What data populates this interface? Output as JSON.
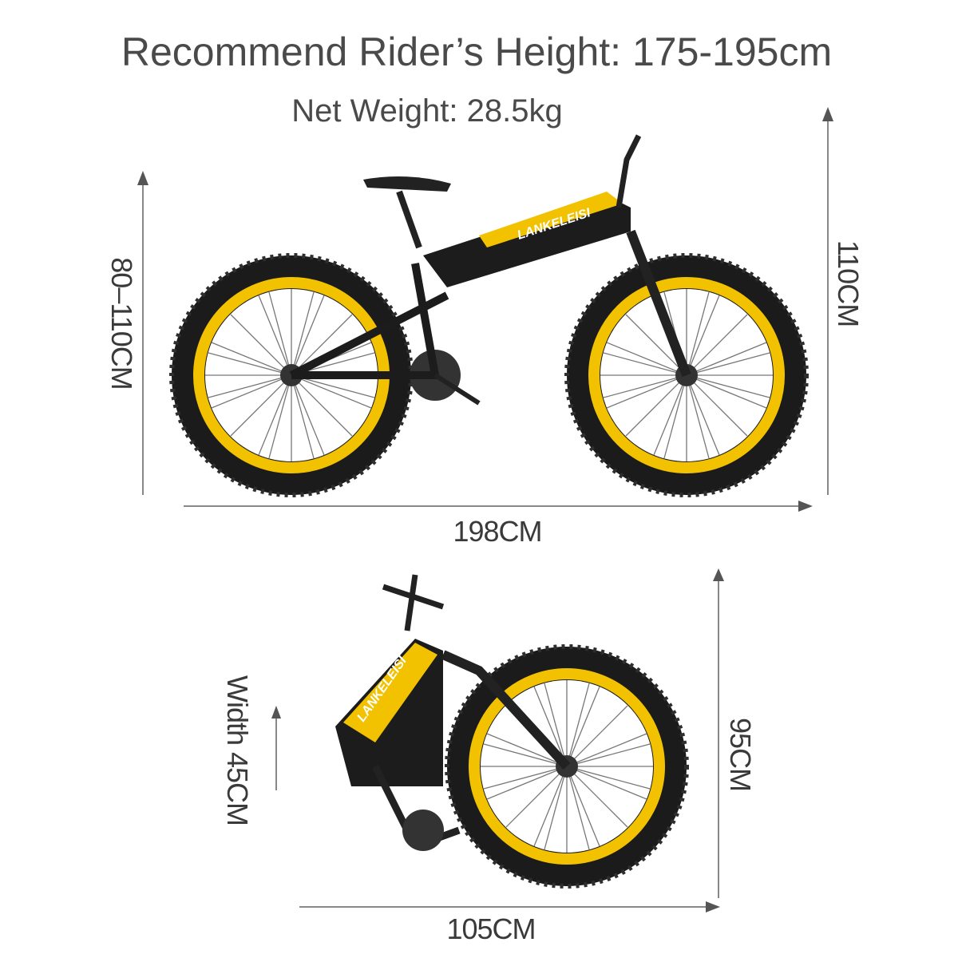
{
  "header": {
    "title": "Recommend Rider’s Height: 175-195cm",
    "subtitle": "Net Weight: 28.5kg"
  },
  "unfolded": {
    "seat_height": "80–110CM",
    "total_height": "110CM",
    "length": "198CM",
    "brand_logo": "LANKELEISI"
  },
  "folded": {
    "width": "Width 45CM",
    "height": "95CM",
    "length": "105CM",
    "brand_logo": "LANKELEISI"
  },
  "colors": {
    "accent": "#f2c200",
    "frame": "#1c1c1c",
    "text": "#4a4a4a"
  }
}
